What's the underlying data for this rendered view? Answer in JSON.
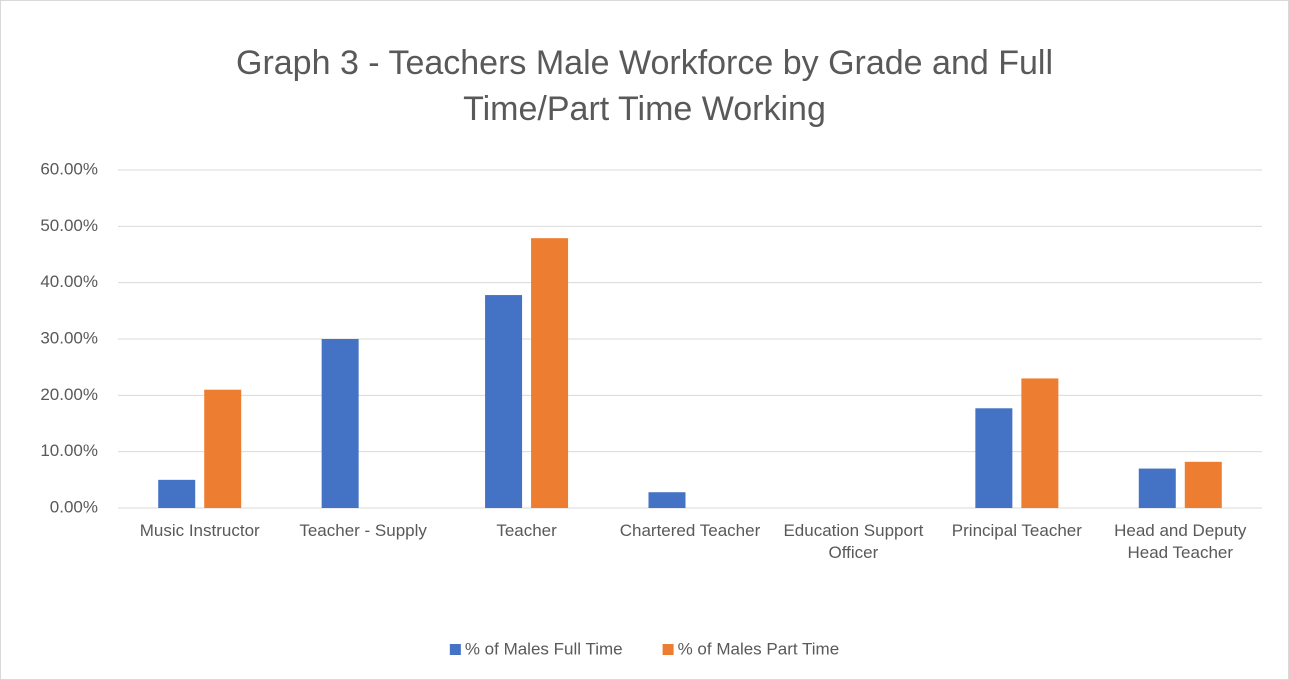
{
  "chart_data": {
    "type": "bar",
    "title": "Graph 3 - Teachers Male Workforce by Grade and Full Time/Part Time Working",
    "categories": [
      "Music Instructor",
      "Teacher - Supply",
      "Teacher",
      "Chartered Teacher",
      "Education Support Officer",
      "Principal Teacher",
      "Head and Deputy Head Teacher"
    ],
    "series": [
      {
        "name": "% of Males Full Time",
        "color": "#4472c4",
        "values": [
          5,
          30,
          37.8,
          2.8,
          0,
          17.7,
          7
        ]
      },
      {
        "name": "% of Males Part Time",
        "color": "#ed7d31",
        "values": [
          21,
          0,
          47.9,
          0,
          0,
          23,
          8.2
        ]
      }
    ],
    "ylim": [
      0,
      60
    ],
    "yticks": [
      {
        "value": 0,
        "label": "0.00%"
      },
      {
        "value": 10,
        "label": "10.00%"
      },
      {
        "value": 20,
        "label": "20.00%"
      },
      {
        "value": 30,
        "label": "30.00%"
      },
      {
        "value": 40,
        "label": "40.00%"
      },
      {
        "value": 50,
        "label": "50.00%"
      },
      {
        "value": 60,
        "label": "60.00%"
      }
    ],
    "grid": true,
    "legend": "bottom"
  }
}
